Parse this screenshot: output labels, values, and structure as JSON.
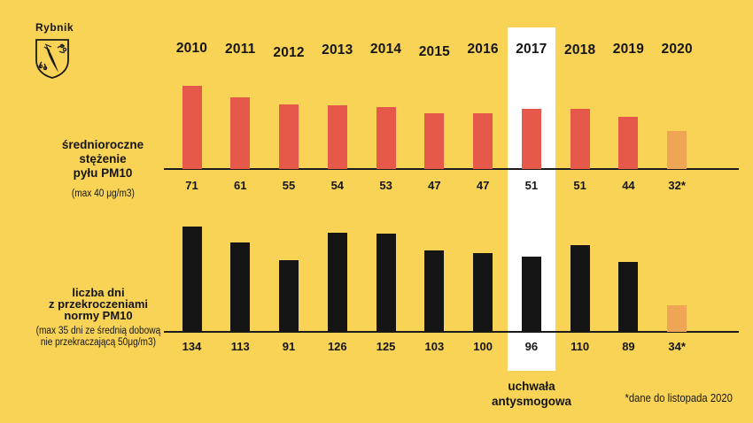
{
  "logo": {
    "city": "Rybnik"
  },
  "colors": {
    "background": "#F8D355",
    "bar_top": "#E5584A",
    "bar_bottom": "#151515",
    "bar_partial": "#F0A455",
    "highlight": "#FFFFFF"
  },
  "top_section": {
    "label_lines": [
      "średnioroczne",
      "stężenie",
      "pyłu PM10"
    ],
    "sublabel": "(max 40 μg/m3)"
  },
  "bottom_section": {
    "label_lines": [
      "liczba dni",
      "z przekroczeniami",
      "normy PM10"
    ],
    "sublabel_lines": [
      "(max 35 dni ze średnią dobową",
      "nie przekraczającą 50μg/m3)"
    ]
  },
  "annotations": {
    "highlight_year": "2017",
    "highlight_label_lines": [
      "uchwała",
      "antysmogowa"
    ],
    "footnote": "*dane do listopada 2020"
  },
  "chart_data": [
    {
      "type": "bar",
      "title": "średnioroczne stężenie pyłu PM10",
      "subtitle": "(max 40 μg/m3)",
      "categories": [
        "2010",
        "2011",
        "2012",
        "2013",
        "2014",
        "2015",
        "2016",
        "2017",
        "2018",
        "2019",
        "2020"
      ],
      "values": [
        71,
        61,
        55,
        54,
        53,
        47,
        47,
        51,
        51,
        44,
        32
      ],
      "value_labels": [
        "71",
        "61",
        "55",
        "54",
        "53",
        "47",
        "47",
        "51",
        "51",
        "44",
        "32*"
      ],
      "partial_year": "2020",
      "xlabel": "",
      "ylabel": "",
      "ylim": [
        0,
        80
      ],
      "grid": false,
      "legend": false,
      "value_label_position": "below-baseline"
    },
    {
      "type": "bar",
      "title": "liczba dni z przekroczeniami normy PM10",
      "subtitle": "(max 35 dni ze średnią dobową nie przekraczającą 50μg/m3)",
      "categories": [
        "2010",
        "2011",
        "2012",
        "2013",
        "2014",
        "2015",
        "2016",
        "2017",
        "2018",
        "2019",
        "2020"
      ],
      "values": [
        134,
        113,
        91,
        126,
        125,
        103,
        100,
        96,
        110,
        89,
        34
      ],
      "value_labels": [
        "134",
        "113",
        "91",
        "126",
        "125",
        "103",
        "100",
        "96",
        "110",
        "89",
        "34*"
      ],
      "partial_year": "2020",
      "xlabel": "",
      "ylabel": "",
      "ylim": [
        0,
        140
      ],
      "grid": false,
      "legend": false,
      "value_label_position": "below-baseline"
    }
  ]
}
